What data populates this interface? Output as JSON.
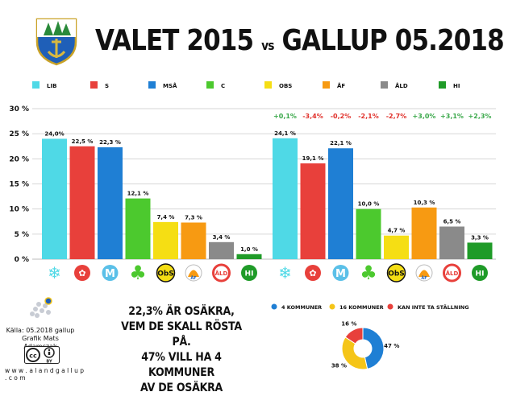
{
  "header": {
    "title_left": "VALET 2015",
    "title_vs": "vs",
    "title_right": "GALLUP 05.2018"
  },
  "colors": {
    "LIB": "#4fd9e6",
    "S": "#e8403b",
    "MSÅ": "#1f7fd4",
    "C": "#4cc92e",
    "OBS": "#f5de14",
    "ÅF": "#f79a12",
    "ÅLD": "#8a8a8a",
    "HI": "#1f9b28"
  },
  "chart_data": {
    "type": "bar",
    "categories": [
      "LIB",
      "S",
      "MSÅ",
      "C",
      "OBS",
      "ÅF",
      "ÅLD",
      "HI"
    ],
    "ylim": [
      0,
      30
    ],
    "yticks": [
      "0 %",
      "5 %",
      "10 %",
      "15 %",
      "20 %",
      "25 %",
      "30 %"
    ],
    "grid": true,
    "legend_position": "top",
    "series": [
      {
        "values": [
          24.0,
          22.5,
          22.3,
          12.1,
          7.4,
          7.3,
          3.4,
          1.0
        ],
        "labels": [
          "24,0%",
          "22,5 %",
          "22,3 %",
          "12,1 %",
          "7,4 %",
          "7,3 %",
          "3,4 %",
          "1,0 %"
        ]
      },
      {
        "values": [
          24.1,
          19.1,
          22.1,
          10.0,
          4.7,
          10.3,
          6.5,
          3.3
        ],
        "labels": [
          "24,1 %",
          "19,1 %",
          "22,1 %",
          "10,0 %",
          "4,7 %",
          "10,3 %",
          "6,5 %",
          "3,3 %"
        ]
      }
    ],
    "changes": [
      "+0,1%",
      "-3,4%",
      "-0,2%",
      "-2,1%",
      "-2,7%",
      "+3,0%",
      "+3,1%",
      "+2,3%"
    ],
    "change_colors": [
      "#3aa84a",
      "#e0302a",
      "#e0302a",
      "#e0302a",
      "#e0302a",
      "#3aa84a",
      "#3aa84a",
      "#3aa84a"
    ],
    "party_logos": [
      "❄",
      "✿",
      "M",
      "♣",
      "ObS",
      "ÅF",
      "ÅLD",
      "HI"
    ]
  },
  "pie": {
    "type": "pie",
    "legend": [
      {
        "label": "4 KOMMUNER",
        "color": "#1f7fd4"
      },
      {
        "label": "16 KOMMUNER",
        "color": "#f5c518"
      },
      {
        "label": "KAN INTE TA STÄLLNING",
        "color": "#e8403b"
      }
    ],
    "values": [
      47,
      38,
      16
    ],
    "labels": [
      "47 %",
      "38 %",
      "16 %"
    ]
  },
  "note": {
    "line1": "22,3% ÄR OSÄKRA,",
    "line2": "VEM DE SKALL RÖSTA PÅ.",
    "line3": "47% VILL HA 4 KOMMUNER",
    "line4": "AV DE OSÄKRA"
  },
  "footer": {
    "source": "Källa: 05.2018 gallup",
    "credit": "Grafik Mats Adamczak",
    "url": "w w w . a l a n d g a l l u p . c o m",
    "cc_by": "BY"
  }
}
